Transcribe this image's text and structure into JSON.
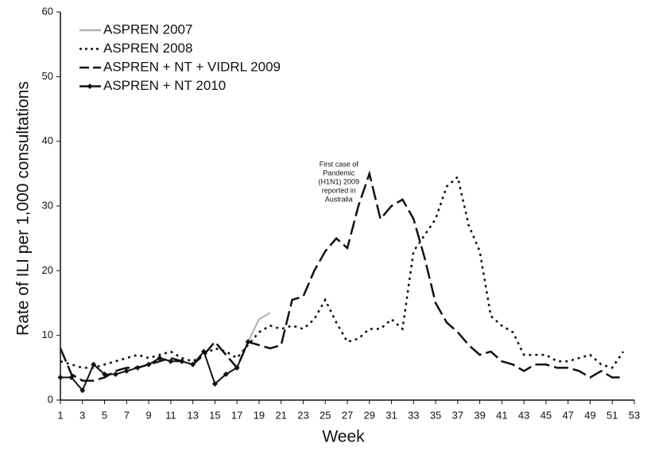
{
  "chart_data": {
    "type": "line",
    "x_label": "Week",
    "y_label": "Rate of ILI per 1,000 consultations",
    "annotation": [
      "First case of",
      "Pandemic",
      "(H1N1) 2009",
      "reported in",
      "Australia"
    ],
    "annotation_x": 25,
    "x": [
      1,
      2,
      3,
      4,
      5,
      6,
      7,
      8,
      9,
      10,
      11,
      12,
      13,
      14,
      15,
      16,
      17,
      18,
      19,
      20,
      21,
      22,
      23,
      24,
      25,
      26,
      27,
      28,
      29,
      30,
      31,
      32,
      33,
      34,
      35,
      36,
      37,
      38,
      39,
      40,
      41,
      42,
      43,
      44,
      45,
      46,
      47,
      48,
      49,
      50,
      51,
      52
    ],
    "xlim": [
      1,
      53
    ],
    "xticks": [
      1,
      3,
      5,
      7,
      9,
      11,
      13,
      15,
      17,
      19,
      21,
      23,
      25,
      27,
      29,
      31,
      33,
      35,
      37,
      39,
      41,
      43,
      45,
      47,
      49,
      51,
      53
    ],
    "ylim": [
      0,
      60
    ],
    "yticks": [
      0,
      10,
      20,
      30,
      40,
      50,
      60
    ],
    "grid": false,
    "legend": "top-left",
    "series": [
      {
        "name": "ASPREN 2007",
        "color": "#b0b0b0",
        "dash": "solid",
        "values": [
          null,
          null,
          null,
          null,
          null,
          null,
          null,
          null,
          null,
          null,
          null,
          null,
          null,
          null,
          null,
          null,
          null,
          9,
          12.5,
          13.5,
          null,
          null,
          null,
          null,
          null,
          null,
          null,
          null,
          null,
          null,
          null,
          null,
          null,
          null,
          null,
          null,
          null,
          null,
          null,
          null,
          null,
          null,
          null,
          null,
          null,
          null,
          null,
          null,
          null,
          null,
          null,
          null
        ]
      },
      {
        "name": "ASPREN 2008",
        "color": "#111111",
        "dash": "dotted",
        "values": [
          6,
          5.5,
          5,
          5,
          5.5,
          6,
          6.5,
          7,
          6.5,
          7,
          7.5,
          6.5,
          6,
          7,
          8,
          7.5,
          6.5,
          8.5,
          10.5,
          11.5,
          11,
          11.5,
          11,
          12.5,
          15.5,
          12,
          9,
          9.5,
          11,
          11,
          12.5,
          11,
          23,
          25.5,
          28,
          33,
          34.5,
          27,
          23,
          13,
          11.5,
          10.5,
          7,
          7,
          7,
          6,
          6,
          6.5,
          7,
          5.5,
          5,
          7.5
        ]
      },
      {
        "name": "ASPREN + NT + VIDRL 2009",
        "color": "#111111",
        "dash": "dashed",
        "values": [
          8,
          4,
          3,
          3,
          3.5,
          4.5,
          5,
          5,
          5.5,
          6,
          6.5,
          6,
          5.5,
          7,
          9,
          7,
          5,
          9,
          8.5,
          8,
          8.5,
          15.5,
          16,
          20,
          23,
          25,
          23.5,
          30,
          35,
          28,
          30,
          31,
          28,
          22,
          15,
          12,
          10.5,
          8.5,
          7,
          7.5,
          6,
          5.5,
          4.5,
          5.5,
          5.5,
          5,
          5,
          4.5,
          3.5,
          4.5,
          3.5,
          3.5
        ]
      },
      {
        "name": "ASPREN + NT 2010",
        "color": "#111111",
        "dash": "solid",
        "markers": true,
        "values": [
          3.5,
          3.5,
          1.5,
          5.5,
          4,
          4,
          4.5,
          5,
          5.5,
          6.5,
          6,
          6,
          5.5,
          7.5,
          2.5,
          4,
          5,
          9,
          null,
          null,
          null,
          null,
          null,
          null,
          null,
          null,
          null,
          null,
          null,
          null,
          null,
          null,
          null,
          null,
          null,
          null,
          null,
          null,
          null,
          null,
          null,
          null,
          null,
          null,
          null,
          null,
          null,
          null,
          null,
          null,
          null,
          null
        ]
      }
    ]
  }
}
